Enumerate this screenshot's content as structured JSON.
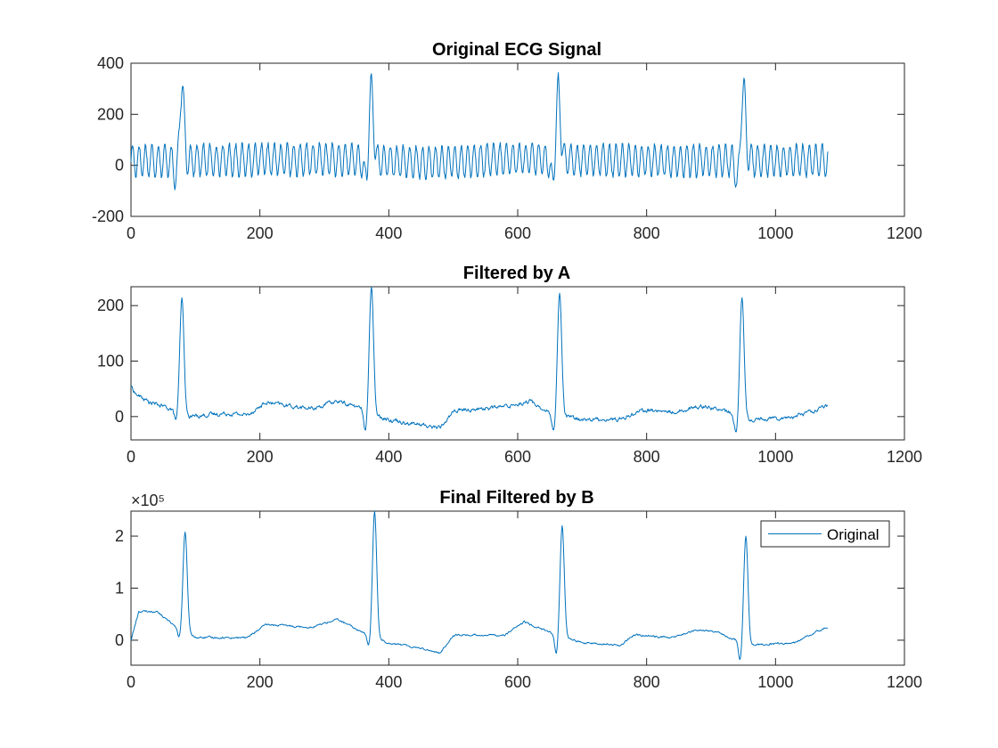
{
  "chart_data": [
    {
      "type": "line",
      "title": "Original ECG Signal",
      "xlabel": "",
      "ylabel": "",
      "xlim": [
        0,
        1200
      ],
      "ylim": [
        -200,
        400
      ],
      "xticks": [
        0,
        200,
        400,
        600,
        800,
        1000,
        1200
      ],
      "yticks": [
        -200,
        0,
        200,
        400
      ],
      "xtick_labels": [
        "0",
        "200",
        "400",
        "600",
        "800",
        "1000",
        "1200"
      ],
      "ytick_labels": [
        "-200",
        "0",
        "200",
        "400"
      ],
      "exponent_label": "",
      "grid": false,
      "legend": null,
      "series": [
        {
          "color": "#0072BD",
          "n_points": 1082,
          "noise": {
            "amplitude": 62,
            "period": 10,
            "mean": 18
          },
          "baseline_knots": [
            [
              0,
              0
            ],
            [
              300,
              5
            ],
            [
              470,
              -8
            ],
            [
              600,
              8
            ],
            [
              800,
              0
            ],
            [
              1080,
              0
            ]
          ],
          "beats": [
            {
              "x": 79,
              "amplitude": 300,
              "depth": -80
            },
            {
              "x": 373,
              "amplitude": 285,
              "depth": -90
            },
            {
              "x": 663,
              "amplitude": 278,
              "depth": -105
            },
            {
              "x": 950,
              "amplitude": 300,
              "depth": -100
            }
          ]
        }
      ]
    },
    {
      "type": "line",
      "title": "Filtered by A",
      "xlabel": "",
      "ylabel": "",
      "xlim": [
        0,
        1200
      ],
      "ylim": [
        -42,
        234
      ],
      "xticks": [
        0,
        200,
        400,
        600,
        800,
        1000,
        1200
      ],
      "yticks": [
        0,
        100,
        200
      ],
      "xtick_labels": [
        "0",
        "200",
        "400",
        "600",
        "800",
        "1000",
        "1200"
      ],
      "ytick_labels": [
        "0",
        "100",
        "200"
      ],
      "exponent_label": "",
      "grid": false,
      "legend": null,
      "series": [
        {
          "color": "#0072BD",
          "n_points": 1082,
          "noise": {
            "amplitude": 3,
            "period": 0,
            "mean": 0
          },
          "baseline_knots": [
            [
              0,
              55
            ],
            [
              8,
              40
            ],
            [
              30,
              25
            ],
            [
              60,
              15
            ],
            [
              85,
              0
            ],
            [
              150,
              6
            ],
            [
              180,
              3
            ],
            [
              210,
              25
            ],
            [
              280,
              14
            ],
            [
              320,
              28
            ],
            [
              350,
              18
            ],
            [
              400,
              -5
            ],
            [
              450,
              -15
            ],
            [
              480,
              -20
            ],
            [
              500,
              10
            ],
            [
              580,
              18
            ],
            [
              620,
              28
            ],
            [
              650,
              5
            ],
            [
              700,
              -5
            ],
            [
              760,
              -5
            ],
            [
              790,
              12
            ],
            [
              840,
              8
            ],
            [
              890,
              20
            ],
            [
              920,
              10
            ],
            [
              960,
              -5
            ],
            [
              1030,
              0
            ],
            [
              1060,
              12
            ],
            [
              1080,
              18
            ]
          ],
          "beats": [
            {
              "x": 79,
              "amplitude": 212,
              "depth": -15
            },
            {
              "x": 373,
              "amplitude": 234,
              "depth": -35
            },
            {
              "x": 665,
              "amplitude": 222,
              "depth": -38
            },
            {
              "x": 948,
              "amplitude": 215,
              "depth": -42
            }
          ]
        }
      ]
    },
    {
      "type": "line",
      "title": "Final Filtered by B",
      "xlabel": "",
      "ylabel": "",
      "xlim": [
        0,
        1200
      ],
      "ylim": [
        -0.48,
        2.48
      ],
      "xticks": [
        0,
        200,
        400,
        600,
        800,
        1000,
        1200
      ],
      "yticks": [
        0,
        1,
        2
      ],
      "xtick_labels": [
        "0",
        "200",
        "400",
        "600",
        "800",
        "1000",
        "1200"
      ],
      "ytick_labels": [
        "0",
        "1",
        "2"
      ],
      "exponent_label": "×10⁵",
      "grid": false,
      "legend": {
        "position": "top-right",
        "entries": [
          "Original"
        ]
      },
      "series": [
        {
          "name": "Original",
          "color": "#0072BD",
          "n_points": 1082,
          "noise": {
            "amplitude": 0.015,
            "period": 0,
            "mean": 0
          },
          "baseline_knots": [
            [
              0,
              0
            ],
            [
              12,
              0.55
            ],
            [
              40,
              0.55
            ],
            [
              60,
              0.35
            ],
            [
              80,
              0.2
            ],
            [
              100,
              0.05
            ],
            [
              180,
              0.05
            ],
            [
              210,
              0.3
            ],
            [
              280,
              0.25
            ],
            [
              320,
              0.4
            ],
            [
              360,
              0.15
            ],
            [
              400,
              -0.05
            ],
            [
              450,
              -0.15
            ],
            [
              480,
              -0.25
            ],
            [
              500,
              0.1
            ],
            [
              580,
              0.1
            ],
            [
              610,
              0.35
            ],
            [
              650,
              0.15
            ],
            [
              700,
              -0.05
            ],
            [
              760,
              -0.1
            ],
            [
              780,
              0.1
            ],
            [
              840,
              0.05
            ],
            [
              880,
              0.2
            ],
            [
              910,
              0.15
            ],
            [
              960,
              -0.1
            ],
            [
              1030,
              -0.05
            ],
            [
              1060,
              0.15
            ],
            [
              1080,
              0.25
            ]
          ],
          "beats": [
            {
              "x": 84,
              "amplitude": 2.08,
              "depth": -0.05
            },
            {
              "x": 378,
              "amplitude": 2.48,
              "depth": -0.2
            },
            {
              "x": 669,
              "amplitude": 2.18,
              "depth": -0.35
            },
            {
              "x": 954,
              "amplitude": 2.02,
              "depth": -0.48
            }
          ]
        }
      ]
    }
  ]
}
